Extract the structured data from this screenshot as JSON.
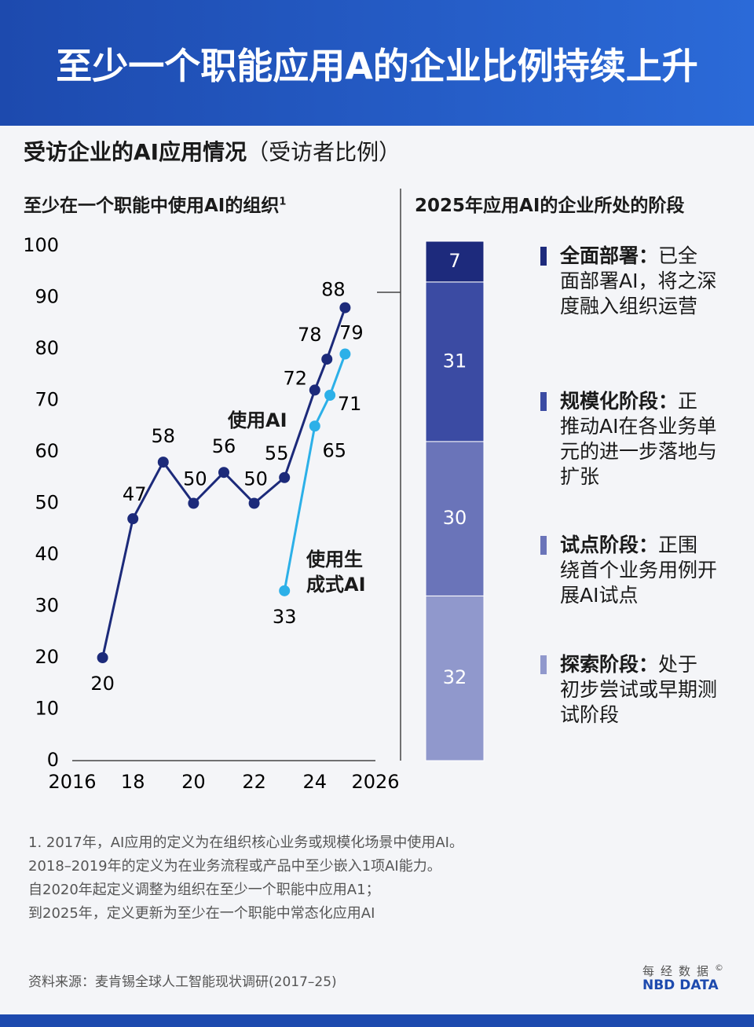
{
  "header": {
    "title": "至少一个职能应用A的企业比例持续上升"
  },
  "subtitle": {
    "main": "受访企业的AI应用情况",
    "note": "（受访者比例）"
  },
  "chart_data": [
    {
      "type": "line",
      "title": "至少在一个职能中使用AI的组织",
      "title_note": "1",
      "xlim": [
        2016,
        2026
      ],
      "xticks": [
        2016,
        {
          "value": 2018,
          "label": "18"
        },
        {
          "value": 2020,
          "label": "20"
        },
        {
          "value": 2022,
          "label": "22"
        },
        {
          "value": 2024,
          "label": "24"
        },
        2026
      ],
      "ylim": [
        0,
        100
      ],
      "yticks": [
        0,
        10,
        20,
        30,
        40,
        50,
        60,
        70,
        80,
        90,
        100
      ],
      "series": [
        {
          "name": "使用AI",
          "color": "#1c2a7a",
          "x": [
            2017,
            2018,
            2019,
            2020,
            2021,
            2022,
            2023,
            2024,
            2024.4,
            2025
          ],
          "values": [
            20,
            47,
            58,
            50,
            56,
            50,
            55,
            72,
            78,
            88
          ]
        },
        {
          "name": "使用生成式AI",
          "color": "#2cb0e8",
          "x": [
            2023,
            2024,
            2024.5,
            2025
          ],
          "values": [
            33,
            65,
            71,
            79
          ]
        }
      ]
    },
    {
      "type": "stacked_bar",
      "title": "2025年应用AI的企业所处的阶段",
      "ylim": [
        0,
        100
      ],
      "series": [
        {
          "name": "探索阶段：",
          "description": "处于初步尝试或早期测试阶段",
          "color": "#9098cc",
          "values": [
            32
          ]
        },
        {
          "name": "试点阶段：",
          "description": "正围绕首个业务用例开展AI试点",
          "color": "#6a74b9",
          "values": [
            30
          ]
        },
        {
          "name": "规模化阶段：",
          "description": "正推动AI在各业务单元的进一步落地与扩张",
          "color": "#3b4ba3",
          "values": [
            31
          ]
        },
        {
          "name": "全面部署：",
          "description": "已全面部署AI，将之深度融入组织运营",
          "color": "#1d2a7c",
          "values": [
            7
          ]
        }
      ]
    }
  ],
  "footnote": {
    "lines": [
      "1. 2017年，AI应用的定义为在组织核心业务或规模化场景中使用AI。",
      "2018–2019年的定义为在业务流程或产品中至少嵌入1项AI能力。",
      "自2020年起定义调整为组织在至少一个职能中应用A1；",
      "到2025年，定义更新为至少在一个职能中常态化应用AI"
    ]
  },
  "source": "资料来源：麦肯锡全球人工智能现状调研(2017–25)",
  "logo": {
    "cn": "每经数据",
    "mark": "©",
    "en": "NBD DATA"
  }
}
